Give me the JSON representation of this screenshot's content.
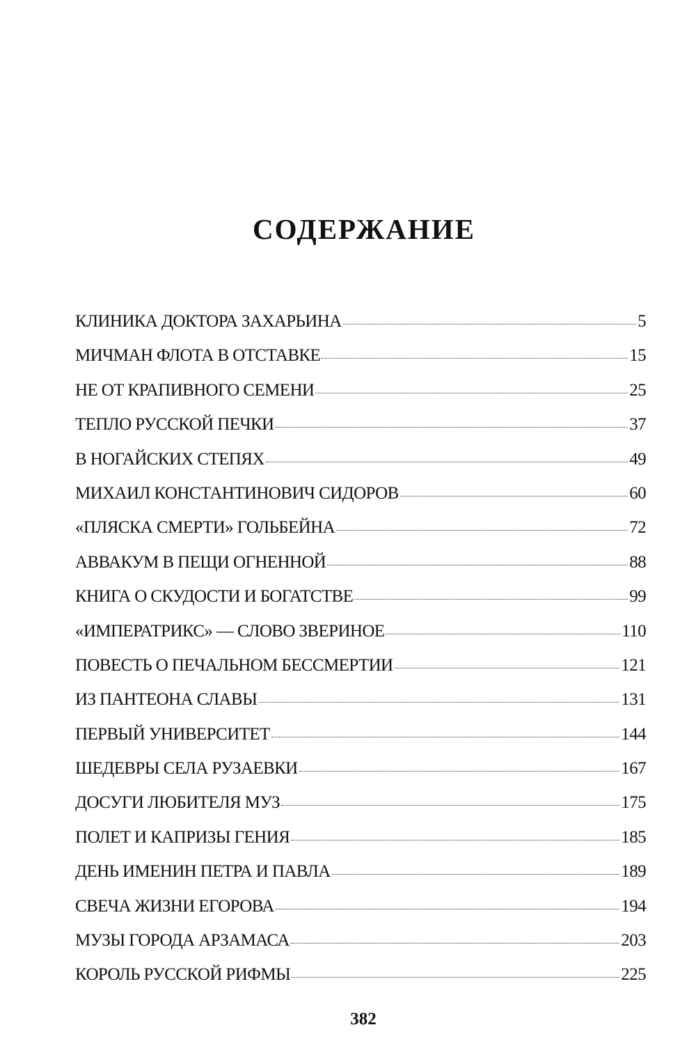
{
  "heading": "СОДЕРЖАНИЕ",
  "entries": [
    {
      "title": "КЛИНИКА ДОКТОРА ЗАХАРЬИНА",
      "page": "5"
    },
    {
      "title": "МИЧМАН ФЛОТА В ОТСТАВКЕ",
      "page": "15"
    },
    {
      "title": "НЕ ОТ КРАПИВНОГО СЕМЕНИ",
      "page": "25"
    },
    {
      "title": "ТЕПЛО РУССКОЙ ПЕЧКИ",
      "page": "37"
    },
    {
      "title": "В НОГАЙСКИХ СТЕПЯХ",
      "page": "49"
    },
    {
      "title": "МИХАИЛ КОНСТАНТИНОВИЧ СИДОРОВ",
      "page": "60"
    },
    {
      "title": "«ПЛЯСКА СМЕРТИ» ГОЛЬБЕЙНА",
      "page": "72"
    },
    {
      "title": "АВВАКУМ В ПЕЩИ ОГНЕННОЙ",
      "page": "88"
    },
    {
      "title": "КНИГА О СКУДОСТИ И БОГАТСТВЕ",
      "page": "99"
    },
    {
      "title": "«ИМПЕРАТРИКС» — СЛОВО ЗВЕРИНОЕ",
      "page": "110"
    },
    {
      "title": "ПОВЕСТЬ О ПЕЧАЛЬНОМ БЕССМЕРТИИ",
      "page": "121"
    },
    {
      "title": "ИЗ ПАНТЕОНА СЛАВЫ",
      "page": "131"
    },
    {
      "title": "ПЕРВЫЙ УНИВЕРСИТЕТ",
      "page": "144"
    },
    {
      "title": "ШЕДЕВРЫ СЕЛА РУЗАЕВКИ",
      "page": "167"
    },
    {
      "title": "ДОСУГИ ЛЮБИТЕЛЯ МУЗ",
      "page": "175"
    },
    {
      "title": "ПОЛЕТ И КАПРИЗЫ ГЕНИЯ",
      "page": "185"
    },
    {
      "title": "ДЕНЬ ИМЕНИН ПЕТРА И ПАВЛА",
      "page": "189"
    },
    {
      "title": "СВЕЧА ЖИЗНИ ЕГОРОВА",
      "page": "194"
    },
    {
      "title": "МУЗЫ ГОРОДА АРЗАМАСА",
      "page": "203"
    },
    {
      "title": "КОРОЛЬ РУССКОЙ РИФМЫ",
      "page": "225"
    }
  ],
  "page_number": "382"
}
